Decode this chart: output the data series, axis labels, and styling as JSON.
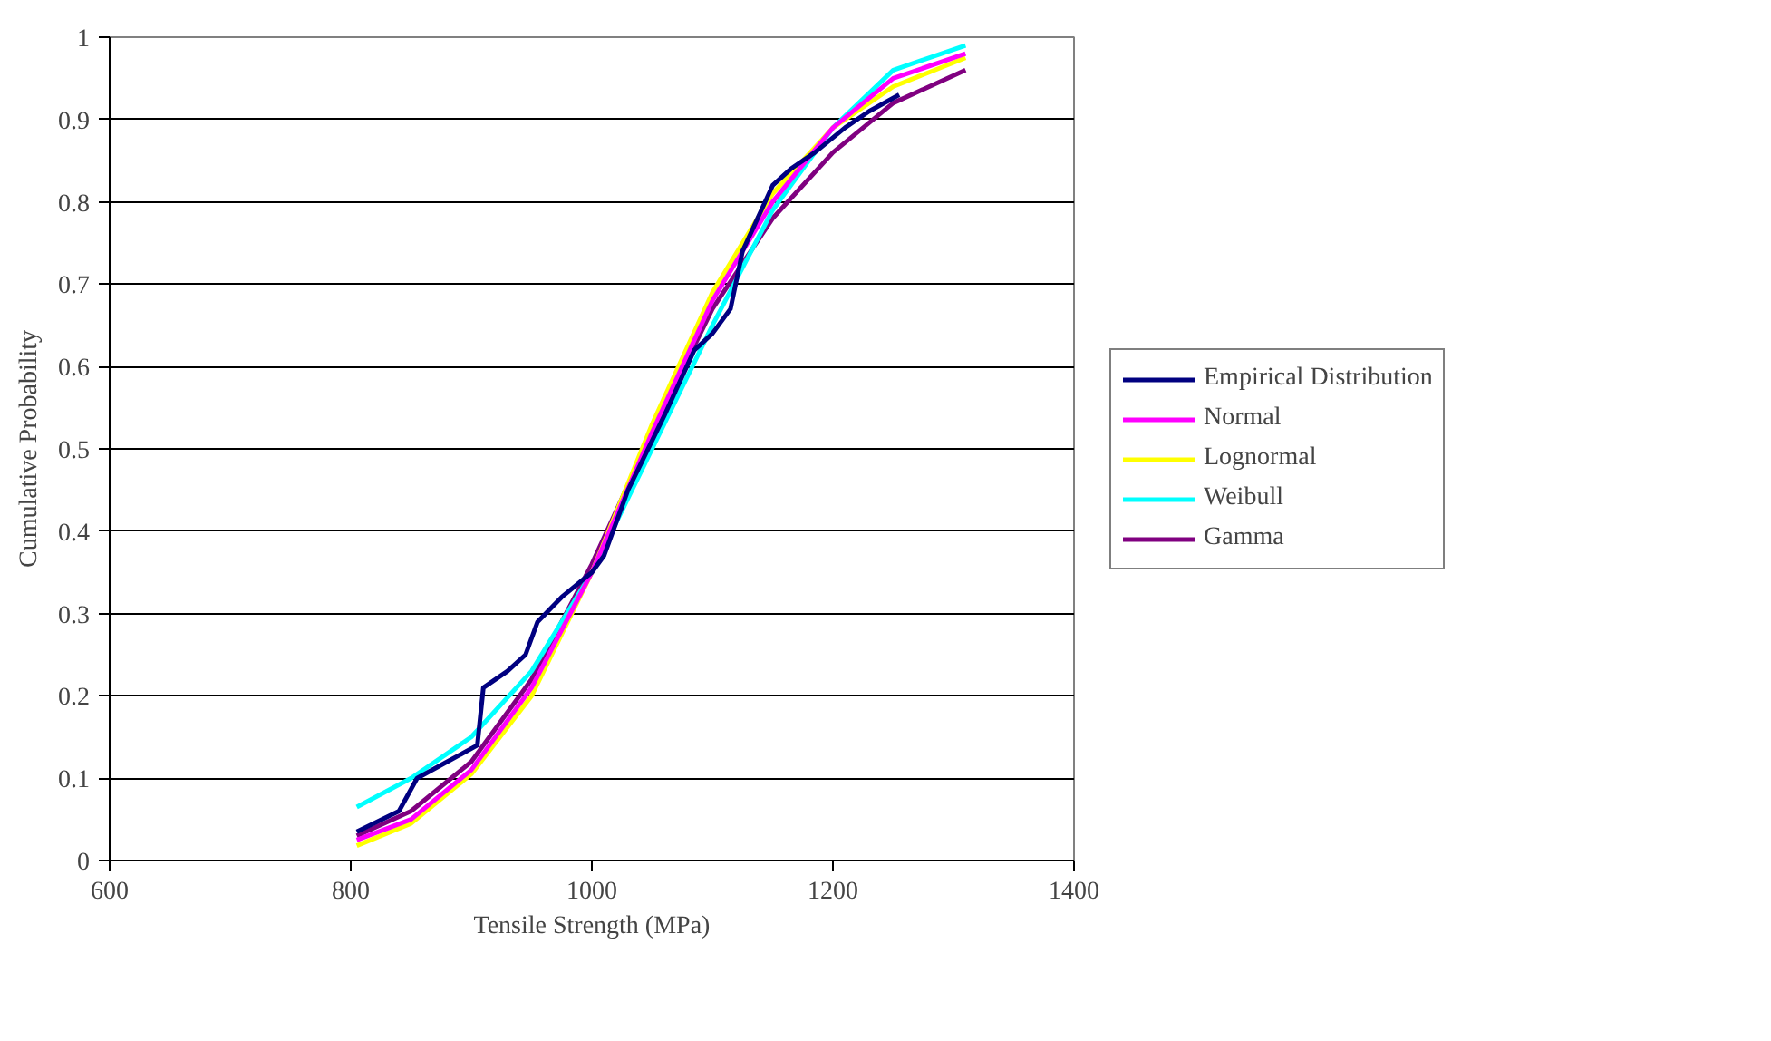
{
  "chart_data": {
    "type": "line",
    "xlabel": "Tensile Strength (MPa)",
    "ylabel": "Cumulative Probability",
    "xlim": [
      600,
      1400
    ],
    "xticks": [
      600,
      800,
      1000,
      1200,
      1400
    ],
    "ylim": [
      0,
      1
    ],
    "yticks": [
      0,
      0.1,
      0.2,
      0.3,
      0.4,
      0.5,
      0.6,
      0.7,
      0.8,
      0.9,
      1
    ],
    "grid": "y",
    "legend": "right",
    "line_style": "solid",
    "marker": "none",
    "series": [
      {
        "name": "Empirical Distribution",
        "color": "#000080",
        "x": [
          805,
          840,
          855,
          880,
          905,
          910,
          930,
          945,
          955,
          975,
          1000,
          1010,
          1030,
          1060,
          1085,
          1100,
          1115,
          1125,
          1150,
          1165,
          1185,
          1210,
          1230,
          1255
        ],
        "values": [
          0.035,
          0.06,
          0.1,
          0.12,
          0.14,
          0.21,
          0.23,
          0.25,
          0.29,
          0.32,
          0.35,
          0.37,
          0.45,
          0.54,
          0.62,
          0.64,
          0.67,
          0.74,
          0.82,
          0.84,
          0.86,
          0.89,
          0.91,
          0.93
        ]
      },
      {
        "name": "Normal",
        "color": "#ff00ff",
        "x": [
          805,
          850,
          900,
          950,
          1000,
          1050,
          1100,
          1150,
          1200,
          1250,
          1310
        ],
        "values": [
          0.025,
          0.05,
          0.11,
          0.21,
          0.35,
          0.52,
          0.68,
          0.8,
          0.89,
          0.95,
          0.98
        ]
      },
      {
        "name": "Lognormal",
        "color": "#ffff00",
        "x": [
          805,
          850,
          900,
          950,
          1000,
          1050,
          1100,
          1150,
          1200,
          1250,
          1310
        ],
        "values": [
          0.018,
          0.045,
          0.105,
          0.2,
          0.35,
          0.53,
          0.69,
          0.81,
          0.89,
          0.94,
          0.975
        ]
      },
      {
        "name": "Weibull",
        "color": "#00ffff",
        "x": [
          805,
          850,
          900,
          950,
          1000,
          1050,
          1100,
          1150,
          1200,
          1250,
          1310
        ],
        "values": [
          0.065,
          0.1,
          0.15,
          0.23,
          0.35,
          0.5,
          0.65,
          0.79,
          0.89,
          0.96,
          0.99
        ]
      },
      {
        "name": "Gamma",
        "color": "#800080",
        "x": [
          805,
          850,
          900,
          950,
          1000,
          1050,
          1100,
          1150,
          1200,
          1250,
          1310
        ],
        "values": [
          0.03,
          0.06,
          0.12,
          0.22,
          0.36,
          0.52,
          0.67,
          0.78,
          0.86,
          0.92,
          0.96
        ]
      }
    ]
  }
}
